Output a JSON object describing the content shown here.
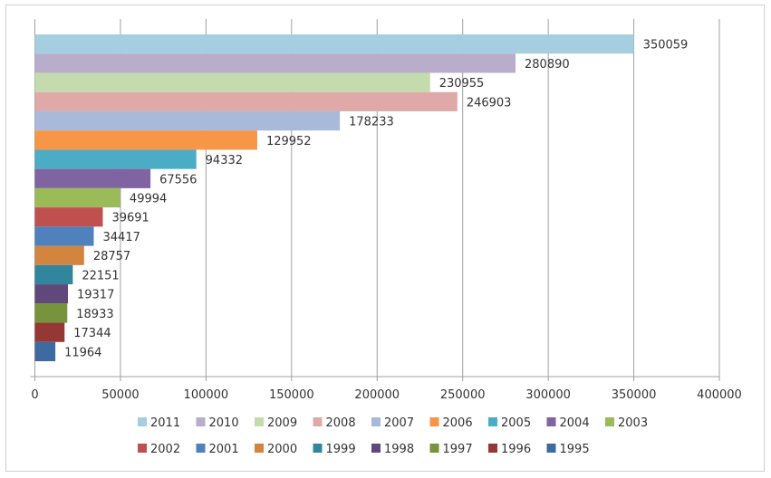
{
  "chart_data": {
    "type": "bar",
    "orientation": "horizontal",
    "categories": [
      "2011",
      "2010",
      "2009",
      "2008",
      "2007",
      "2006",
      "2005",
      "2004",
      "2003",
      "2002",
      "2001",
      "2000",
      "1999",
      "1998",
      "1997",
      "1996",
      "1995"
    ],
    "values": [
      350059,
      280890,
      230955,
      246903,
      178233,
      129952,
      94332,
      67556,
      49994,
      39691,
      34417,
      28757,
      22151,
      19317,
      18933,
      17344,
      11964
    ],
    "colors": [
      "#a5cfe0",
      "#b8aecb",
      "#c5dbad",
      "#dfa9a8",
      "#a8b9da",
      "#f79646",
      "#4bacc6",
      "#8064a2",
      "#9bbb59",
      "#c0504d",
      "#4f81bd",
      "#d3843f",
      "#31859c",
      "#60497a",
      "#77933c",
      "#953735",
      "#3d6aa1"
    ],
    "xlim": [
      0,
      400000
    ],
    "xticks": [
      "0",
      "50000",
      "100000",
      "150000",
      "200000",
      "250000",
      "300000",
      "350000",
      "400000"
    ],
    "grid": true,
    "legend_position": "bottom",
    "title": "",
    "xlabel": "",
    "ylabel": ""
  }
}
